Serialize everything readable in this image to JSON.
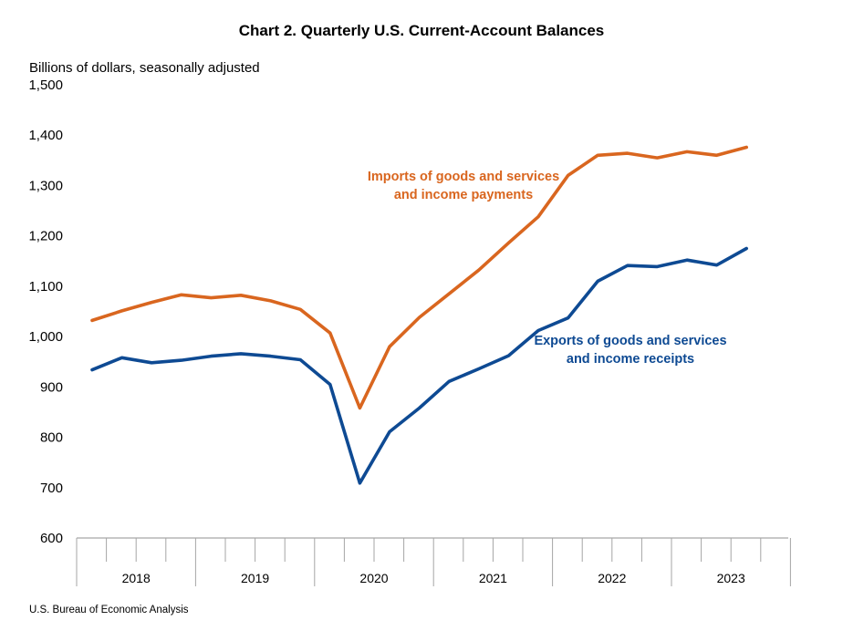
{
  "chart_data": {
    "type": "line",
    "title": "Chart 2. Quarterly U.S. Current-Account Balances",
    "ylabel": "Billions of dollars, seasonally adjusted",
    "xlabel": "",
    "ylim": [
      600,
      1500
    ],
    "yticks": [
      "600",
      "700",
      "800",
      "900",
      "1,000",
      "1,100",
      "1,200",
      "1,300",
      "1,400",
      "1,500"
    ],
    "x": [
      "2018 Q1",
      "2018 Q2",
      "2018 Q3",
      "2018 Q4",
      "2019 Q1",
      "2019 Q2",
      "2019 Q3",
      "2019 Q4",
      "2020 Q1",
      "2020 Q2",
      "2020 Q3",
      "2020 Q4",
      "2021 Q1",
      "2021 Q2",
      "2021 Q3",
      "2021 Q4",
      "2022 Q1",
      "2022 Q2",
      "2022 Q3",
      "2022 Q4",
      "2023 Q1",
      "2023 Q2",
      "2023 Q3"
    ],
    "year_labels": [
      "2018",
      "2019",
      "2020",
      "2021",
      "2022",
      "2023"
    ],
    "grid": false,
    "legend": "inline",
    "series": [
      {
        "name": "Imports of goods and services and income payments",
        "label_lines": [
          "Imports of goods and services",
          "and income payments"
        ],
        "color": "#D9661F",
        "values": [
          1032,
          1051,
          1068,
          1083,
          1077,
          1082,
          1071,
          1054,
          1007,
          858,
          980,
          1038,
          1085,
          1132,
          1186,
          1238,
          1320,
          1360,
          1364,
          1355,
          1367,
          1360,
          1376
        ]
      },
      {
        "name": "Exports of goods and services and income receipts",
        "label_lines": [
          "Exports of goods and services",
          "and income receipts"
        ],
        "color": "#0E4A93",
        "values": [
          934,
          958,
          948,
          953,
          961,
          966,
          961,
          954,
          905,
          709,
          811,
          858,
          911,
          936,
          962,
          1012,
          1037,
          1110,
          1141,
          1139,
          1152,
          1142,
          1175
        ]
      }
    ]
  },
  "footer": {
    "source": "U.S. Bureau of Economic Analysis"
  }
}
